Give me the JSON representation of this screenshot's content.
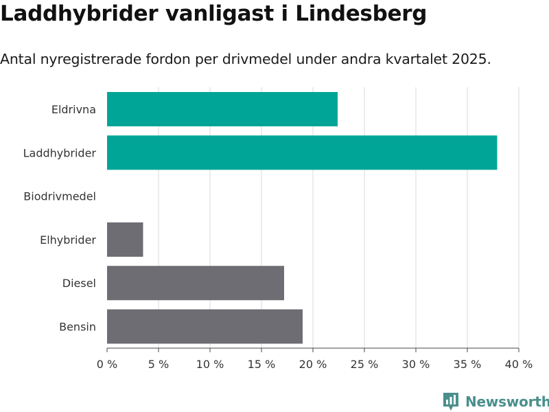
{
  "colors": {
    "accent": "#00a598",
    "neutral": "#6e6d73",
    "grid": "#d9d9d9",
    "brand": "#4a8f8c"
  },
  "brand": {
    "name": "Newsworthy",
    "icon": "newsworthy-logo-icon"
  },
  "chart_data": {
    "type": "bar",
    "orientation": "horizontal",
    "title": "Laddhybrider vanligast i Lindesberg",
    "subtitle": "Antal nyregistrerade fordon per drivmedel under andra kvartalet 2025.",
    "categories": [
      "Eldrivna",
      "Laddhybrider",
      "Biodrivmedel",
      "Elhybrider",
      "Diesel",
      "Bensin"
    ],
    "values": [
      22.4,
      37.9,
      0,
      3.5,
      17.2,
      19.0
    ],
    "highlighted": [
      true,
      true,
      false,
      false,
      false,
      false
    ],
    "unit": "%",
    "xlim": [
      0,
      40
    ],
    "ticks": [
      0,
      5,
      10,
      15,
      20,
      25,
      30,
      35,
      40
    ],
    "tick_labels": [
      "0 %",
      "5 %",
      "10 %",
      "15 %",
      "20 %",
      "25 %",
      "30 %",
      "35 %",
      "40 %"
    ],
    "xlabel": "",
    "ylabel": "",
    "grid": true,
    "legend": "none"
  }
}
